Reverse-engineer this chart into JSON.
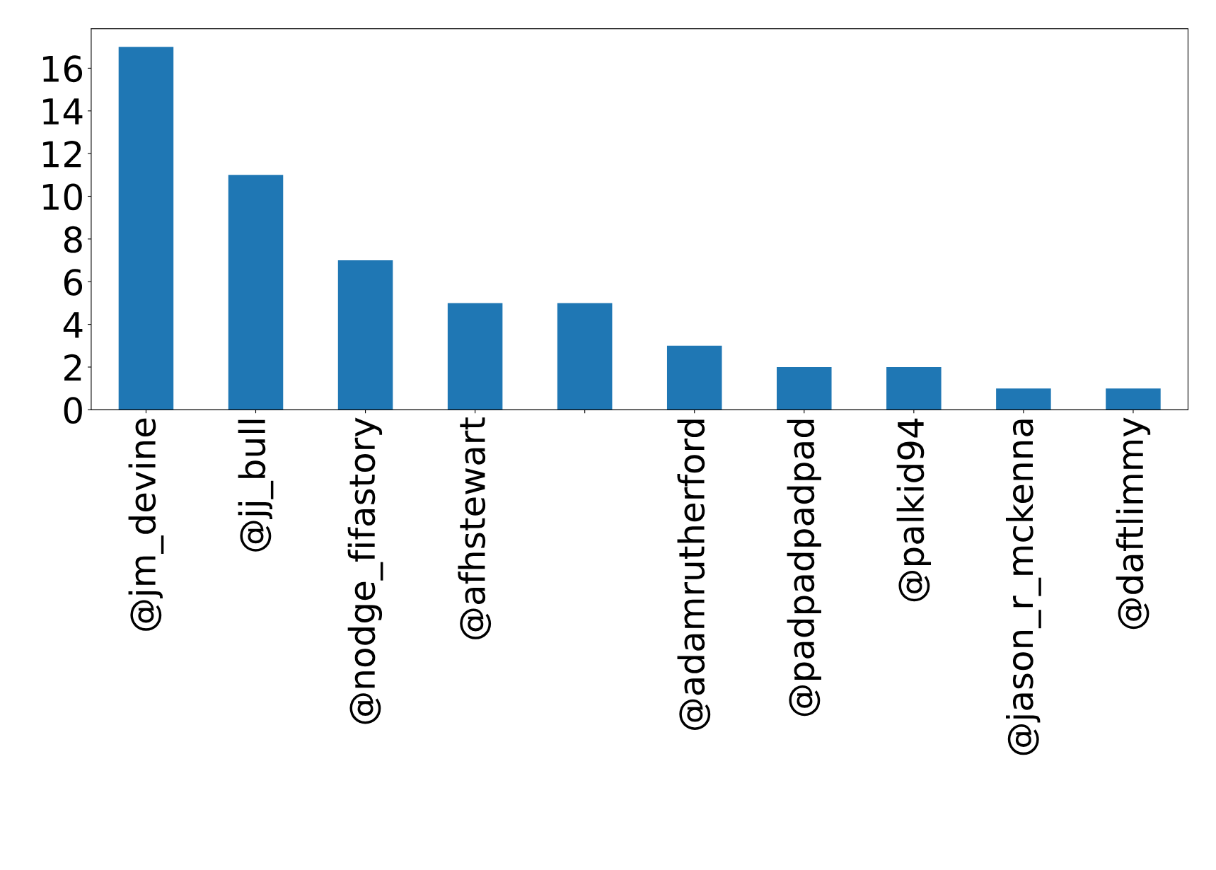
{
  "chart_data": {
    "type": "bar",
    "categories": [
      "@jm_devine",
      "@jj_bull",
      "@nodge_fifastory",
      "@afhstewart",
      null,
      "@adamrutherford",
      "@padpadpadpad",
      "@palkid94",
      "@jason_r_mckenna",
      "@daftlimmy"
    ],
    "values": [
      17,
      11,
      7,
      5,
      5,
      3,
      2,
      2,
      1,
      1
    ],
    "color": "#1f77b4",
    "ylim": [
      0,
      17.85
    ],
    "yticks": [
      0,
      2,
      4,
      6,
      8,
      10,
      12,
      14,
      16
    ],
    "grid": false,
    "legend": false
  }
}
